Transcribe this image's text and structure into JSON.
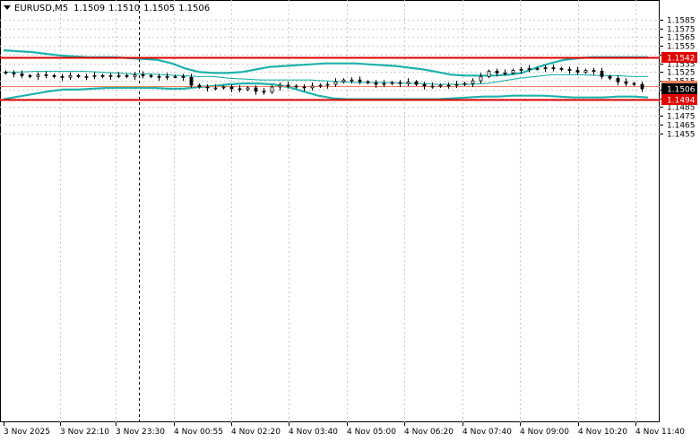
{
  "header": {
    "symbol": "EURUSD,M5",
    "open": "1.1509",
    "high": "1.1510",
    "low": "1.1505",
    "close": "1.1506"
  },
  "colors": {
    "background": "#ffffff",
    "grid": "#c8c8c8",
    "bars": "#000000",
    "bollinger": "#20b2aa",
    "level_line": "#e00000",
    "bid_line": "#f08060"
  },
  "chart_data": {
    "type": "ohlc-candlestick",
    "symbol": "EURUSD",
    "timeframe": "M5",
    "price_ticks": [
      "1.1585",
      "1.1575",
      "1.1565",
      "1.1555",
      "1.1545",
      "1.1535",
      "1.1525",
      "1.1515",
      "1.1505",
      "1.1495",
      "1.1485",
      "1.1475",
      "1.1465",
      "1.1455"
    ],
    "time_ticks": [
      "3 Nov 2025",
      "3 Nov 22:10",
      "3 Nov 23:30",
      "4 Nov 00:55",
      "4 Nov 02:20",
      "4 Nov 03:40",
      "4 Nov 05:00",
      "4 Nov 06:20",
      "4 Nov 07:40",
      "4 Nov 09:00",
      "4 Nov 10:20",
      "4 Nov 11:40"
    ],
    "ylim": [
      1.145,
      1.159
    ],
    "levels": [
      {
        "label": "1.1542",
        "price": 1.1542,
        "kind": "horizontal-line"
      },
      {
        "label": "1.1494",
        "price": 1.1494,
        "kind": "horizontal-line"
      },
      {
        "label": "1.1509",
        "price": 1.1509,
        "kind": "price-marker"
      },
      {
        "label": "1.1506",
        "price": 1.1506,
        "kind": "current-price"
      }
    ],
    "close_series": [
      1.1524,
      1.1523,
      1.1521,
      1.152,
      1.1522,
      1.1521,
      1.152,
      1.1519,
      1.1521,
      1.152,
      1.152,
      1.1521,
      1.152,
      1.1521,
      1.1521,
      1.152,
      1.1522,
      1.1521,
      1.152,
      1.1519,
      1.152,
      1.152,
      1.1519,
      1.151,
      1.1508,
      1.1507,
      1.1507,
      1.1508,
      1.1506,
      1.1505,
      1.1507,
      1.1503,
      1.1502,
      1.1508,
      1.151,
      1.1509,
      1.1508,
      1.1507,
      1.1509,
      1.151,
      1.1511,
      1.1514,
      1.1516,
      1.1516,
      1.1514,
      1.1513,
      1.1511,
      1.1512,
      1.1513,
      1.1512,
      1.1514,
      1.1511,
      1.1509,
      1.1509,
      1.151,
      1.151,
      1.1511,
      1.1512,
      1.1515,
      1.152,
      1.1526,
      1.1524,
      1.1524,
      1.1527,
      1.1528,
      1.1529,
      1.1529,
      1.153,
      1.1529,
      1.1528,
      1.1527,
      1.1525,
      1.1527,
      1.1526,
      1.152,
      1.1518,
      1.1514,
      1.1512,
      1.1511,
      1.1506
    ],
    "bollinger_upper": [
      1.155,
      1.1549,
      1.1548,
      1.1546,
      1.1544,
      1.1543,
      1.1542,
      1.1542,
      1.1542,
      1.1541,
      1.154,
      1.1539,
      1.1535,
      1.1529,
      1.1525,
      1.1524,
      1.1524,
      1.1525,
      1.1528,
      1.1531,
      1.1532,
      1.1533,
      1.1534,
      1.1535,
      1.1535,
      1.1535,
      1.1534,
      1.1533,
      1.1532,
      1.153,
      1.1528,
      1.1525,
      1.1522,
      1.1521,
      1.1521,
      1.1521,
      1.1522,
      1.1524,
      1.153,
      1.1535,
      1.1539,
      1.1541,
      1.1542,
      1.1542,
      1.1542,
      1.1542,
      1.1542
    ],
    "bollinger_middle": [
      1.1525,
      1.1525,
      1.1526,
      1.1526,
      1.1526,
      1.1526,
      1.1525,
      1.1524,
      1.1523,
      1.1523,
      1.1522,
      1.1521,
      1.152,
      1.152,
      1.1518,
      1.1517,
      1.1516,
      1.1516,
      1.1516,
      1.1516,
      1.1515,
      1.1514,
      1.1513,
      1.1513,
      1.1513,
      1.1512,
      1.1512,
      1.1511,
      1.1511,
      1.1511,
      1.1512,
      1.1515,
      1.1518,
      1.152,
      1.1522,
      1.1522,
      1.1522,
      1.1521,
      1.1521,
      1.152,
      1.152
    ],
    "bollinger_lower": [
      1.1494,
      1.1497,
      1.15,
      1.1503,
      1.1505,
      1.1505,
      1.1506,
      1.1507,
      1.1507,
      1.1507,
      1.1507,
      1.1506,
      1.1506,
      1.1508,
      1.1509,
      1.1511,
      1.1512,
      1.1512,
      1.1511,
      1.1508,
      1.1503,
      1.1498,
      1.1495,
      1.1494,
      1.1494,
      1.1494,
      1.1494,
      1.1494,
      1.1494,
      1.1494,
      1.1495,
      1.1496,
      1.1497,
      1.1497,
      1.1498,
      1.1498,
      1.1498,
      1.1497,
      1.1496,
      1.1496,
      1.1496,
      1.1497,
      1.1497,
      1.1496
    ]
  }
}
